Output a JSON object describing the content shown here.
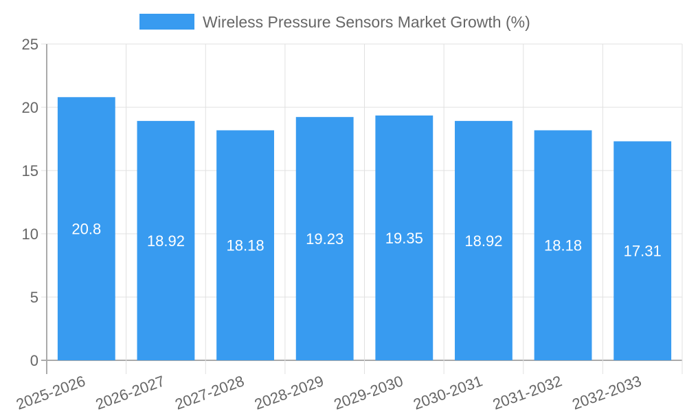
{
  "chart_data": {
    "type": "bar",
    "title": "",
    "legend": [
      {
        "label": "Wireless Pressure Sensors Market Growth (%)",
        "color": "#389bf0"
      }
    ],
    "legend_position": "top",
    "categories": [
      "2025-2026",
      "2026-2027",
      "2027-2028",
      "2028-2029",
      "2029-2030",
      "2030-2031",
      "2031-2032",
      "2032-2033"
    ],
    "series": [
      {
        "name": "Wireless Pressure Sensors Market Growth (%)",
        "values": [
          20.8,
          18.92,
          18.18,
          19.23,
          19.35,
          18.92,
          18.18,
          17.31
        ],
        "color": "#389bf0"
      }
    ],
    "data_labels": [
      "20.8",
      "18.92",
      "18.18",
      "19.23",
      "19.35",
      "18.92",
      "18.18",
      "17.31"
    ],
    "xlabel": "",
    "ylabel": "",
    "ylim": [
      0,
      25
    ],
    "yticks": [
      "0",
      "5",
      "10",
      "15",
      "20",
      "25"
    ],
    "grid": true
  }
}
